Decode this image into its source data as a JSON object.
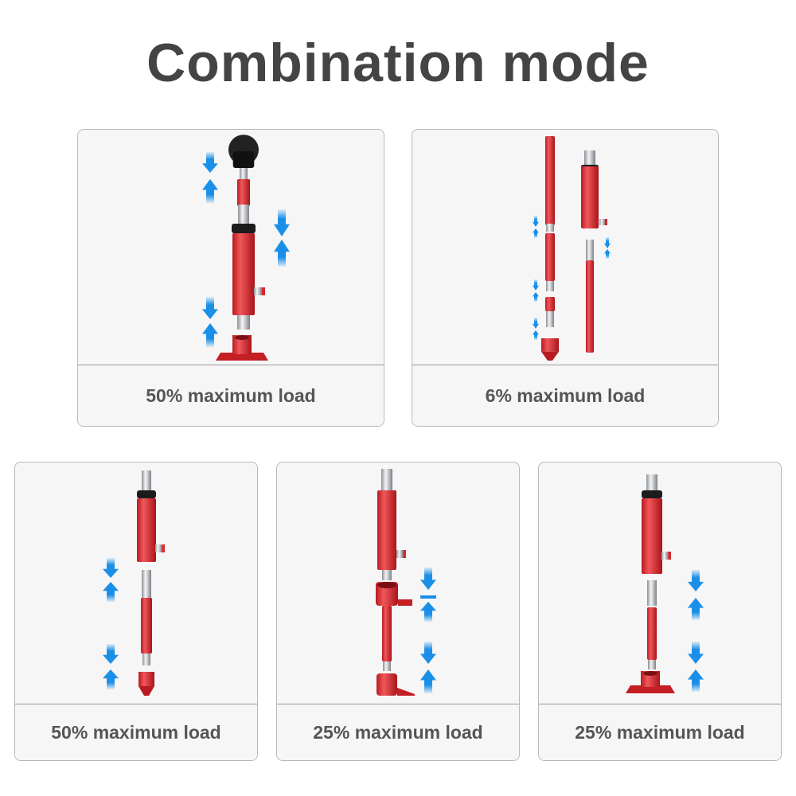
{
  "title": "Combination mode",
  "panels": [
    {
      "label": "50% maximum load"
    },
    {
      "label": "6% maximum load"
    },
    {
      "label": "50% maximum load"
    },
    {
      "label": "25% maximum load"
    },
    {
      "label": "25% maximum load"
    }
  ],
  "colors": {
    "red": "#d8262b",
    "silver": "#c9ccd0",
    "black": "#1c1c1c",
    "arrow": "#1a8fe8",
    "text": "#444444"
  }
}
